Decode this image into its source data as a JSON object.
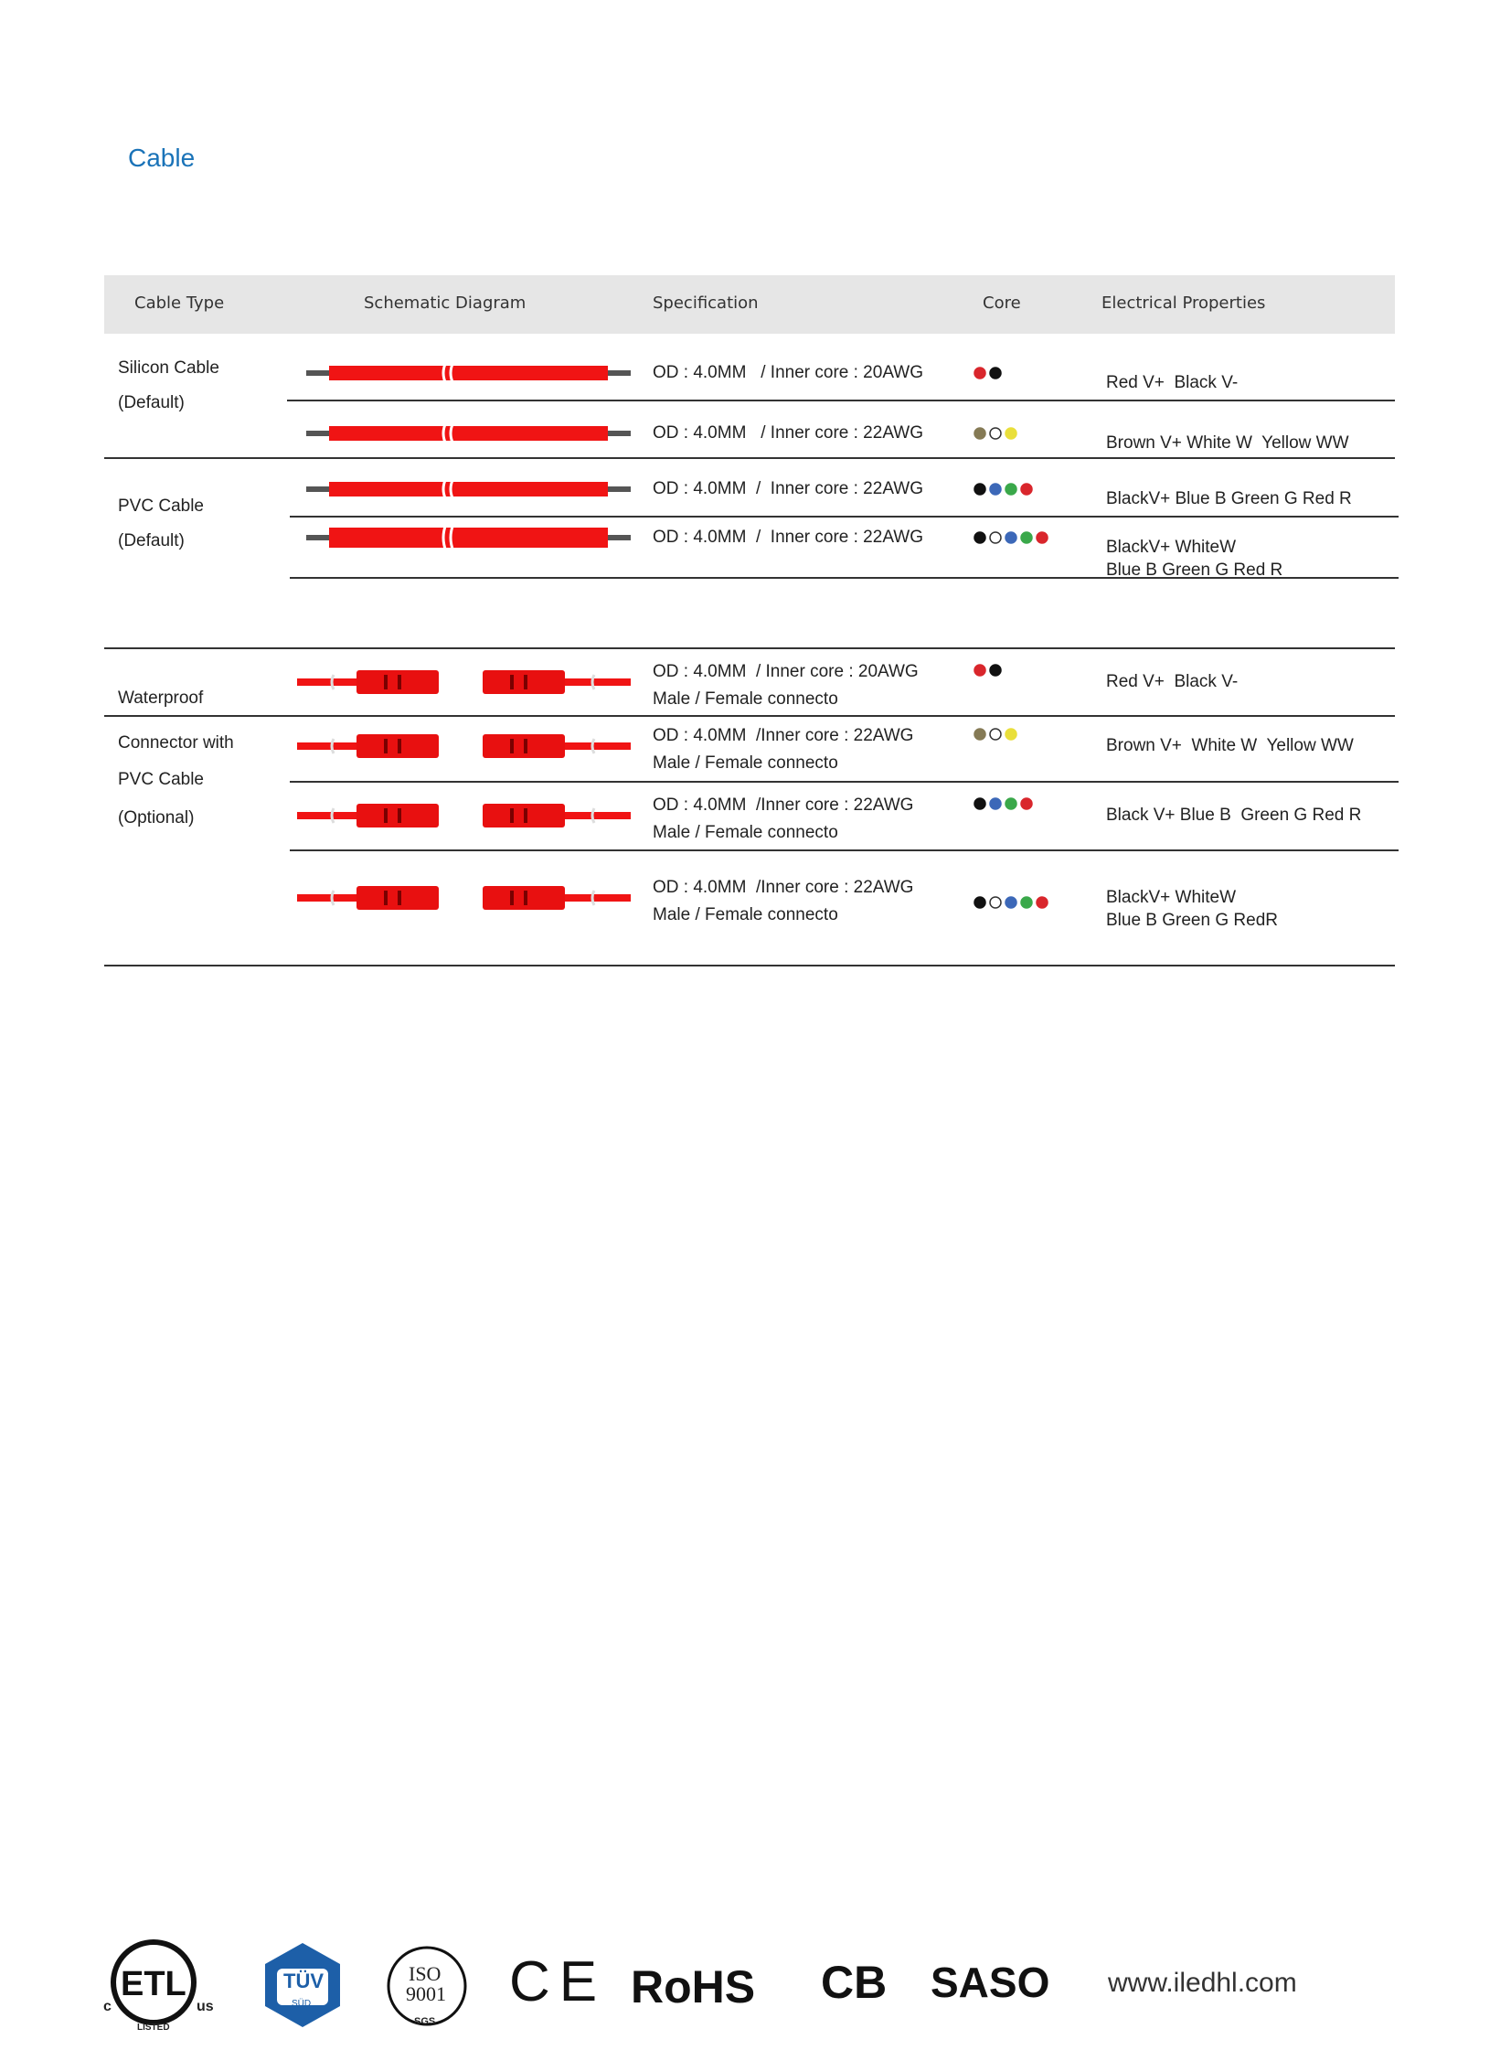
{
  "header": {
    "title": "Cable"
  },
  "table": {
    "columns": [
      "Cable Type",
      "Schematic Diagram",
      "Specification",
      "Core",
      "Electrical Properties"
    ],
    "groups": [
      {
        "type": [
          "Silicon Cable",
          "(Default)"
        ],
        "rows": [
          {
            "spec": [
              "OD : 4.0MM   / Inner core : 20AWG"
            ],
            "electrical": [
              "Red V+  Black V-"
            ]
          },
          {
            "spec": [
              "OD : 4.0MM   / Inner core : 22AWG"
            ],
            "electrical": [
              "Brown V+ White W  Yellow WW"
            ]
          }
        ]
      },
      {
        "type": [
          "PVC Cable",
          "(Default)"
        ],
        "rows": [
          {
            "spec": [
              "OD : 4.0MM  /  Inner core : 22AWG"
            ],
            "electrical": [
              "BlackV+ Blue B Green G Red R"
            ]
          },
          {
            "spec": [
              "OD : 4.0MM  /  Inner core : 22AWG"
            ],
            "electrical": [
              "BlackV+ WhiteW",
              "Blue B Green G Red R"
            ]
          }
        ]
      },
      {
        "type": [
          "Waterproof",
          "Connector with",
          "PVC Cable",
          "(Optional)"
        ],
        "rows": [
          {
            "spec": [
              "OD : 4.0MM  / Inner core : 20AWG",
              "Male / Female connecto"
            ],
            "electrical": [
              "Red V+  Black V-"
            ]
          },
          {
            "spec": [
              "OD : 4.0MM  /Inner core : 22AWG",
              "Male / Female connecto"
            ],
            "electrical": [
              "Brown V+  White W  Yellow WW"
            ]
          },
          {
            "spec": [
              "OD : 4.0MM  /Inner core : 22AWG",
              "Male / Female connecto"
            ],
            "electrical": [
              "Black V+ Blue B  Green G Red R"
            ]
          },
          {
            "spec": [
              "OD : 4.0MM  /Inner core : 22AWG",
              "Male / Female connecto"
            ],
            "electrical": [
              "BlackV+ WhiteW",
              "Blue B Green G RedR"
            ]
          }
        ]
      }
    ]
  },
  "footer": {
    "etl": {
      "c": "c",
      "mark": "ETL",
      "us": "us",
      "listed": "LISTED"
    },
    "tuv": {
      "name": "TÜV",
      "sub": "SÜD"
    },
    "iso": {
      "name": "ISO",
      "number": "9001",
      "sgs": "SGS"
    },
    "ce": "CE",
    "rohs": "RoHS",
    "cb": "CB",
    "saso": "SASO",
    "website": "www.iledhl.com"
  }
}
